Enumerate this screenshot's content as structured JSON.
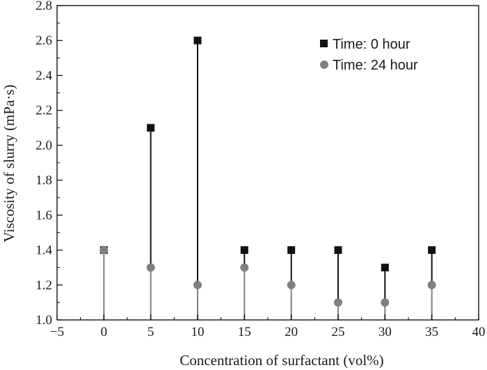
{
  "chart_data": {
    "type": "scatter",
    "xlabel": "Concentration of surfactant (vol%)",
    "ylabel": "Viscosity of slurry (mPa·s)",
    "xlim": [
      -5,
      40
    ],
    "ylim": [
      1.0,
      2.8
    ],
    "xticks": [
      -5,
      0,
      5,
      10,
      15,
      20,
      25,
      30,
      35,
      40
    ],
    "yticks": [
      "1.0",
      "1.2",
      "1.4",
      "1.6",
      "1.8",
      "2.0",
      "2.2",
      "2.4",
      "2.6",
      "2.8"
    ],
    "x": [
      0,
      5,
      10,
      15,
      20,
      25,
      30,
      35
    ],
    "series": [
      {
        "name": "Time: 0 hour",
        "marker": "square",
        "color": "#111111",
        "values": [
          1.4,
          2.1,
          2.6,
          1.4,
          1.4,
          1.4,
          1.3,
          1.4
        ]
      },
      {
        "name": "Time: 24 hour",
        "marker": "circle",
        "color": "#7f7f7f",
        "values": [
          1.4,
          1.3,
          1.2,
          1.3,
          1.2,
          1.1,
          1.1,
          1.2
        ]
      }
    ],
    "grid": false,
    "legend_position": "top-right",
    "stems": true
  }
}
